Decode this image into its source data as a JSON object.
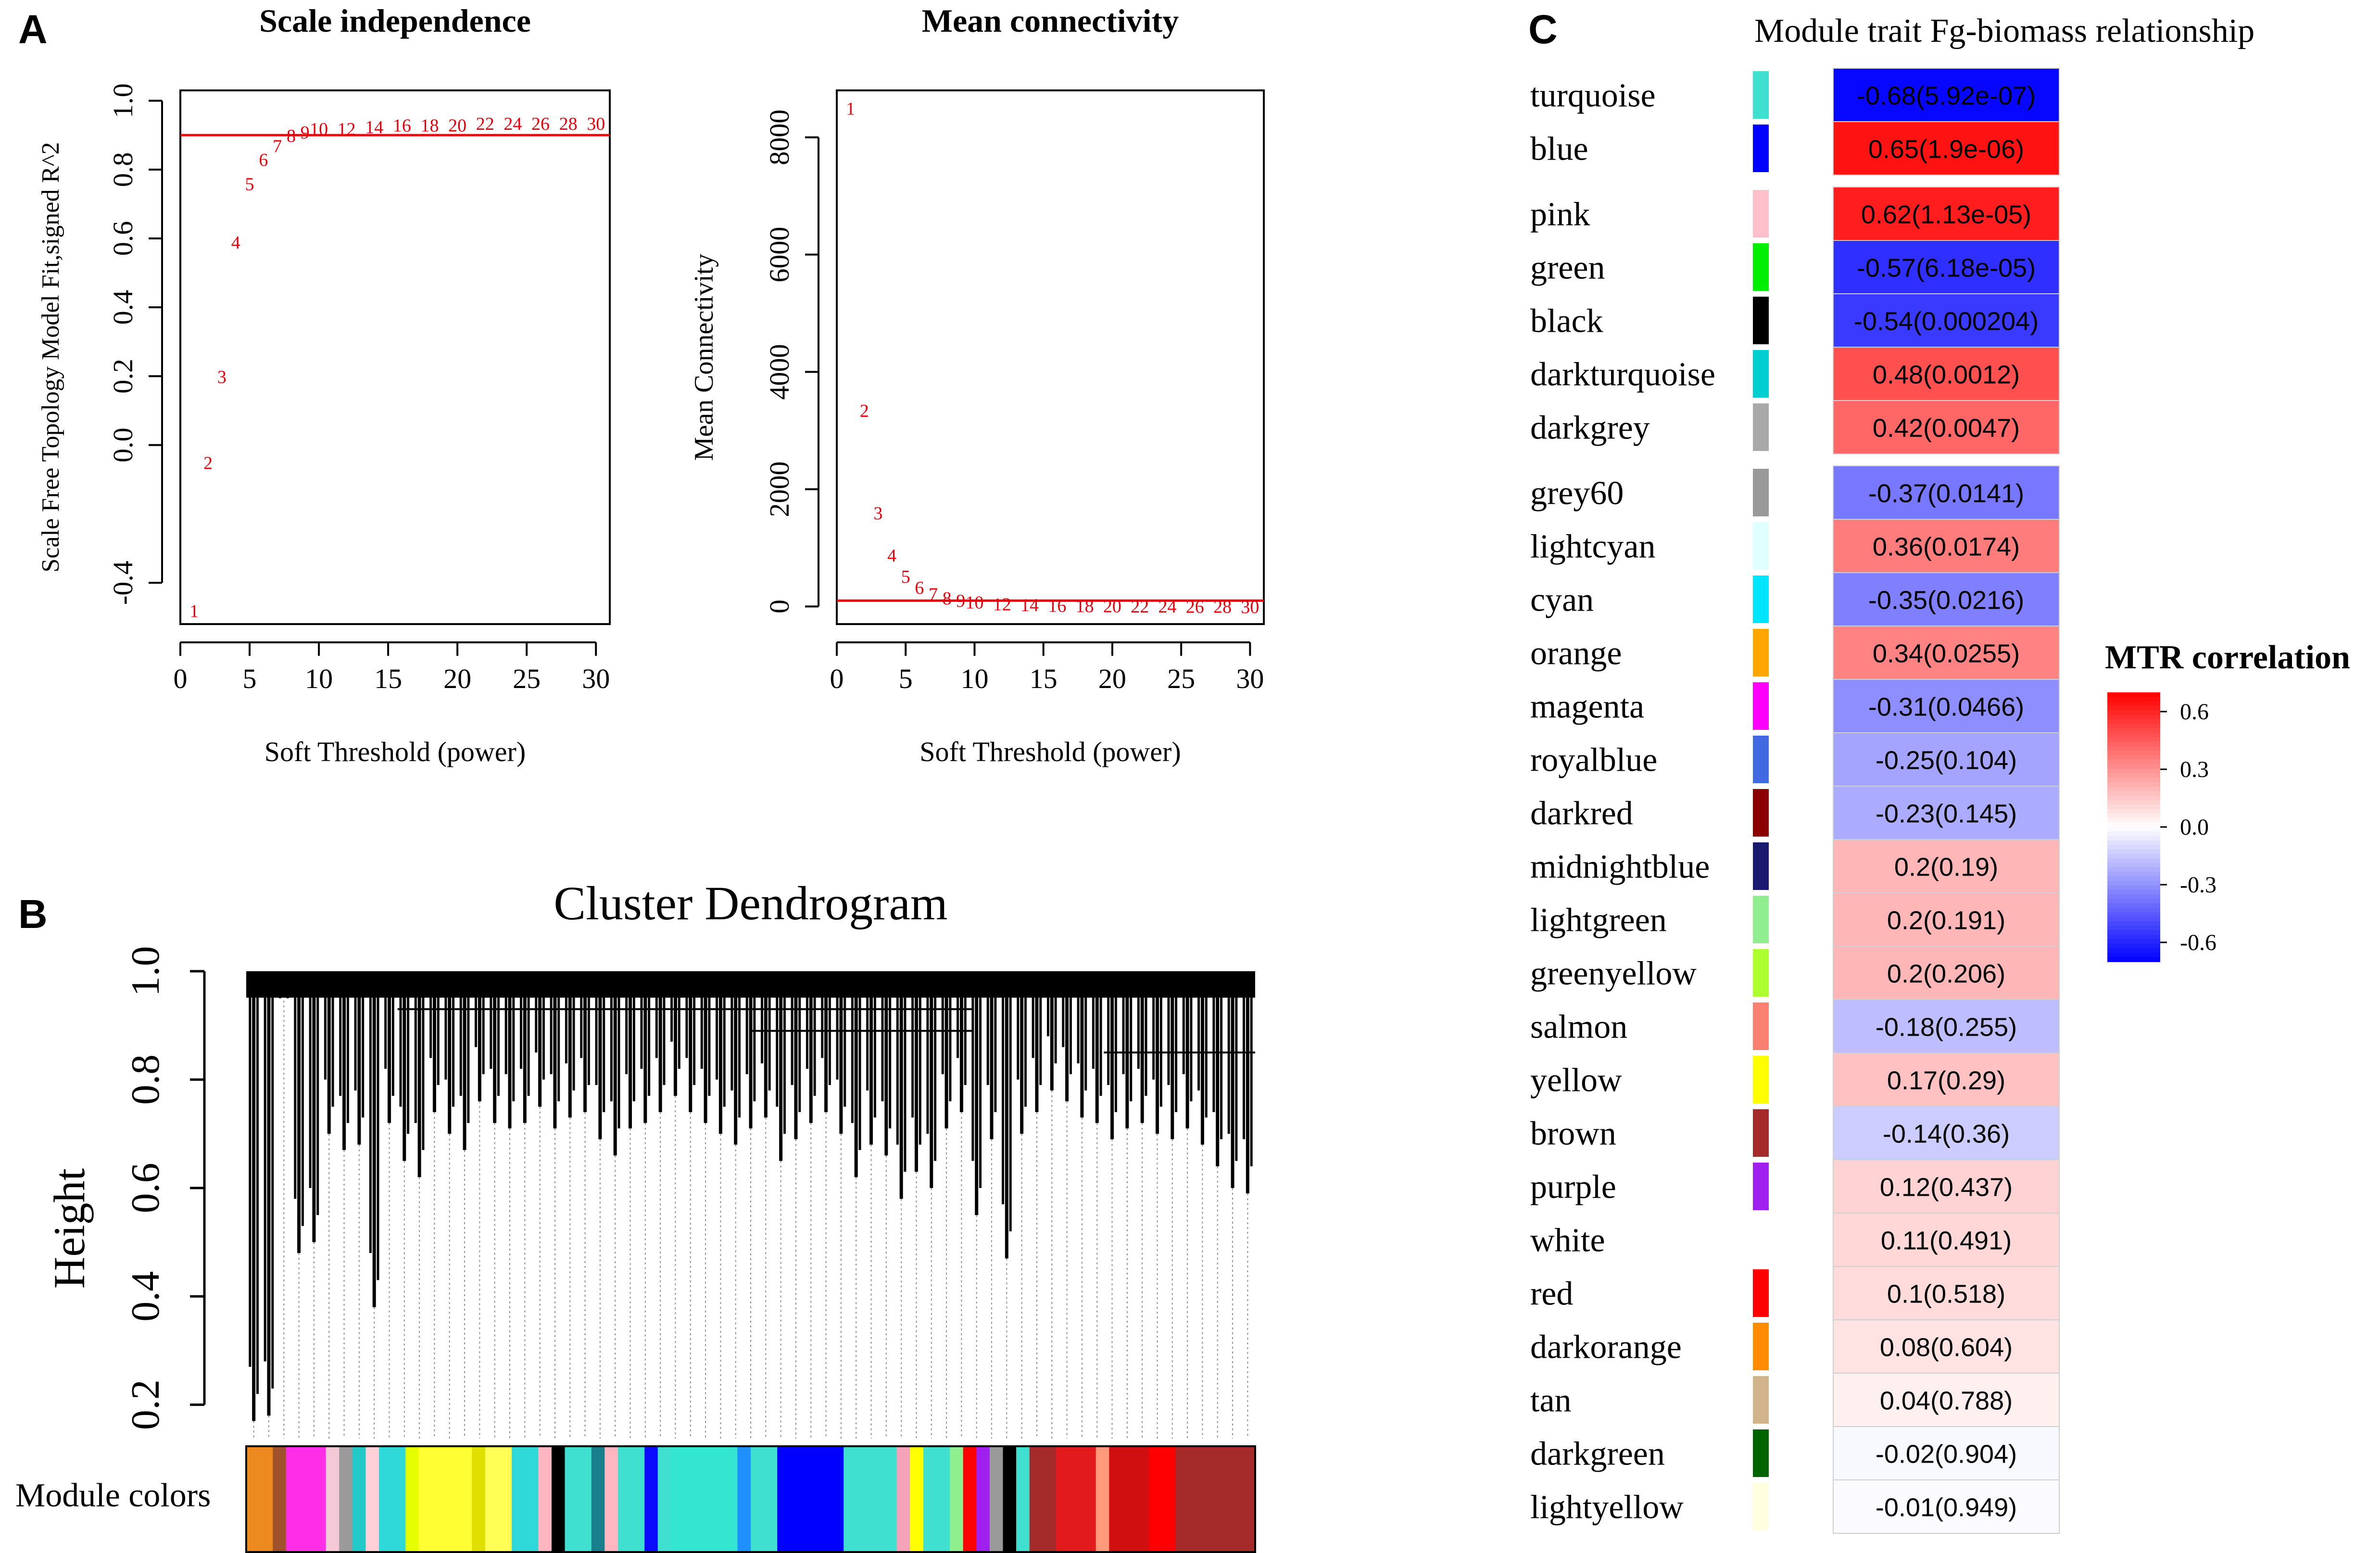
{
  "panels": {
    "a": {
      "letter": "A"
    },
    "b": {
      "letter": "B"
    },
    "c": {
      "letter": "C"
    }
  },
  "chart_data": [
    {
      "id": "scale_independence",
      "type": "scatter",
      "title": "Scale independence",
      "xlabel": "Soft Threshold (power)",
      "ylabel": "Scale Free Topology Model Fit,signed R^2",
      "xlim": [
        0,
        31
      ],
      "ylim": [
        -0.52,
        1.03
      ],
      "xticks": [
        0,
        5,
        10,
        15,
        20,
        25,
        30
      ],
      "yticks": [
        -0.4,
        0.0,
        0.2,
        0.4,
        0.6,
        0.8,
        1.0
      ],
      "ytick_labels": [
        "-0.4",
        "0.0",
        "0.2",
        "0.4",
        "0.6",
        "0.8",
        "1.0"
      ],
      "threshold_line": 0.9,
      "marker_color": "#e8000b",
      "points": [
        {
          "x": 1,
          "y": -0.48,
          "label": "1"
        },
        {
          "x": 2,
          "y": -0.05,
          "label": "2"
        },
        {
          "x": 3,
          "y": 0.2,
          "label": "3"
        },
        {
          "x": 4,
          "y": 0.59,
          "label": "4"
        },
        {
          "x": 5,
          "y": 0.76,
          "label": "5"
        },
        {
          "x": 6,
          "y": 0.83,
          "label": "6"
        },
        {
          "x": 7,
          "y": 0.87,
          "label": "7"
        },
        {
          "x": 8,
          "y": 0.9,
          "label": "8"
        },
        {
          "x": 9,
          "y": 0.91,
          "label": "9"
        },
        {
          "x": 10,
          "y": 0.92,
          "label": "10"
        },
        {
          "x": 12,
          "y": 0.92,
          "label": "12"
        },
        {
          "x": 14,
          "y": 0.925,
          "label": "14"
        },
        {
          "x": 16,
          "y": 0.93,
          "label": "16"
        },
        {
          "x": 18,
          "y": 0.93,
          "label": "18"
        },
        {
          "x": 20,
          "y": 0.93,
          "label": "20"
        },
        {
          "x": 22,
          "y": 0.935,
          "label": "22"
        },
        {
          "x": 24,
          "y": 0.935,
          "label": "24"
        },
        {
          "x": 26,
          "y": 0.935,
          "label": "26"
        },
        {
          "x": 28,
          "y": 0.935,
          "label": "28"
        },
        {
          "x": 30,
          "y": 0.935,
          "label": "30"
        }
      ]
    },
    {
      "id": "mean_connectivity",
      "type": "scatter",
      "title": "Mean connectivity",
      "xlabel": "Soft Threshold (power)",
      "ylabel": "Mean Connectivity",
      "xlim": [
        0,
        31
      ],
      "ylim": [
        -300,
        8800
      ],
      "xticks": [
        0,
        5,
        10,
        15,
        20,
        25,
        30
      ],
      "yticks": [
        0,
        2000,
        4000,
        6000,
        8000
      ],
      "threshold_line": 100,
      "marker_color": "#e8000b",
      "points": [
        {
          "x": 1,
          "y": 8500,
          "label": "1"
        },
        {
          "x": 2,
          "y": 3350,
          "label": "2"
        },
        {
          "x": 3,
          "y": 1600,
          "label": "3"
        },
        {
          "x": 4,
          "y": 880,
          "label": "4"
        },
        {
          "x": 5,
          "y": 520,
          "label": "5"
        },
        {
          "x": 6,
          "y": 330,
          "label": "6"
        },
        {
          "x": 7,
          "y": 220,
          "label": "7"
        },
        {
          "x": 8,
          "y": 150,
          "label": "8"
        },
        {
          "x": 9,
          "y": 110,
          "label": "9"
        },
        {
          "x": 10,
          "y": 80,
          "label": "10"
        },
        {
          "x": 12,
          "y": 50,
          "label": "12"
        },
        {
          "x": 14,
          "y": 35,
          "label": "14"
        },
        {
          "x": 16,
          "y": 25,
          "label": "16"
        },
        {
          "x": 18,
          "y": 20,
          "label": "18"
        },
        {
          "x": 20,
          "y": 15,
          "label": "20"
        },
        {
          "x": 22,
          "y": 12,
          "label": "22"
        },
        {
          "x": 24,
          "y": 10,
          "label": "24"
        },
        {
          "x": 26,
          "y": 8,
          "label": "26"
        },
        {
          "x": 28,
          "y": 6,
          "label": "28"
        },
        {
          "x": 30,
          "y": 5,
          "label": "30"
        }
      ]
    },
    {
      "id": "cluster_dendrogram",
      "type": "dendrogram",
      "title": "Cluster Dendrogram",
      "ylabel": "Height",
      "ylim": [
        0.15,
        1.0
      ],
      "yticks": [
        0.2,
        0.4,
        0.6,
        0.8,
        1.0
      ],
      "ytick_labels": [
        "0.2",
        "0.4",
        "0.6",
        "0.8",
        "1.0"
      ],
      "color_bar_label": "Module colors",
      "module_color_strip": [
        {
          "color": "#ed8a1f",
          "w": 2
        },
        {
          "color": "#a0522d",
          "w": 1
        },
        {
          "color": "#ff2ee6",
          "w": 3
        },
        {
          "color": "#f5c8d6",
          "w": 1
        },
        {
          "color": "#9a9a9a",
          "w": 1
        },
        {
          "color": "#23c8c8",
          "w": 1
        },
        {
          "color": "#ffd0d8",
          "w": 1
        },
        {
          "color": "#2fd9d9",
          "w": 2
        },
        {
          "color": "#e6ff00",
          "w": 1
        },
        {
          "color": "#ffff33",
          "w": 4
        },
        {
          "color": "#e0e000",
          "w": 1
        },
        {
          "color": "#ffff55",
          "w": 2
        },
        {
          "color": "#2fd9d9",
          "w": 2
        },
        {
          "color": "#ffb6c1",
          "w": 1
        },
        {
          "color": "#000000",
          "w": 1
        },
        {
          "color": "#40e0d0",
          "w": 2
        },
        {
          "color": "#1a7f8c",
          "w": 1
        },
        {
          "color": "#ffb6c1",
          "w": 1
        },
        {
          "color": "#40e0d0",
          "w": 2
        },
        {
          "color": "#0b0bff",
          "w": 1
        },
        {
          "color": "#40e0d0",
          "w": 1
        },
        {
          "color": "#32e6d2",
          "w": 5
        },
        {
          "color": "#1e90ff",
          "w": 1
        },
        {
          "color": "#40e0d0",
          "w": 2
        },
        {
          "color": "#0000ff",
          "w": 5
        },
        {
          "color": "#40e0d0",
          "w": 4
        },
        {
          "color": "#f5a3b8",
          "w": 1
        },
        {
          "color": "#ffff00",
          "w": 1
        },
        {
          "color": "#40e0d0",
          "w": 2
        },
        {
          "color": "#8fef8f",
          "w": 1
        },
        {
          "color": "#ff0000",
          "w": 1
        },
        {
          "color": "#a020f0",
          "w": 1
        },
        {
          "color": "#9a9a9a",
          "w": 1
        },
        {
          "color": "#000000",
          "w": 1
        },
        {
          "color": "#40e0d0",
          "w": 1
        },
        {
          "color": "#a52a2a",
          "w": 2
        },
        {
          "color": "#e31a1c",
          "w": 3
        },
        {
          "color": "#ff9a7a",
          "w": 1
        },
        {
          "color": "#d01010",
          "w": 3
        },
        {
          "color": "#ff0000",
          "w": 2
        },
        {
          "color": "#a52a2a",
          "w": 6
        }
      ],
      "heights": [
        0.17,
        0.18,
        0.99,
        0.48,
        0.5,
        0.7,
        0.67,
        0.68,
        0.38,
        0.72,
        0.65,
        0.62,
        0.74,
        0.7,
        0.67,
        0.76,
        0.72,
        0.71,
        0.72,
        0.75,
        0.71,
        0.73,
        0.74,
        0.69,
        0.66,
        0.71,
        0.72,
        0.74,
        0.77,
        0.74,
        0.72,
        0.7,
        0.68,
        0.71,
        0.73,
        0.65,
        0.69,
        0.72,
        0.74,
        0.7,
        0.62,
        0.68,
        0.66,
        0.58,
        0.63,
        0.6,
        0.71,
        0.74,
        0.55,
        0.69,
        0.47,
        0.7,
        0.74,
        0.78,
        0.76,
        0.73,
        0.72,
        0.69,
        0.71,
        0.72,
        0.7,
        0.69,
        0.71,
        0.68,
        0.64,
        0.6,
        0.59
      ],
      "top_level_links": [
        {
          "from": 0.0,
          "to": 0.3,
          "height": 0.99
        },
        {
          "from": 0.15,
          "to": 0.72,
          "height": 0.93
        },
        {
          "from": 0.5,
          "to": 0.72,
          "height": 0.89
        },
        {
          "from": 0.72,
          "to": 1.0,
          "height": 0.99
        },
        {
          "from": 0.85,
          "to": 1.0,
          "height": 0.85
        }
      ]
    },
    {
      "id": "module_trait_relationship",
      "type": "heatmap",
      "title": "Module trait Fg-biomass relationship",
      "legend_title": "MTR correlation",
      "legend_ticks": [
        {
          "value": 0.6,
          "label": "0.6"
        },
        {
          "value": 0.3,
          "label": "0.3"
        },
        {
          "value": 0.0,
          "label": "0.0"
        },
        {
          "value": -0.3,
          "label": "-0.3"
        },
        {
          "value": -0.6,
          "label": "-0.6"
        }
      ],
      "value_range": [
        -0.7,
        0.7
      ],
      "colors": {
        "low": "#0000ff",
        "mid": "#ffffff",
        "high": "#ff0000"
      },
      "groups": [
        {
          "rows": [
            {
              "module": "turquoise",
              "module_color": "#40e0d0",
              "corr": -0.68,
              "label": "-0.68(5.92e-07)"
            },
            {
              "module": "blue",
              "module_color": "#0000ff",
              "corr": 0.65,
              "label": "0.65(1.9e-06)"
            }
          ]
        },
        {
          "rows": [
            {
              "module": "pink",
              "module_color": "#ffc0cb",
              "corr": 0.62,
              "label": "0.62(1.13e-05)"
            },
            {
              "module": "green",
              "module_color": "#00ee00",
              "corr": -0.57,
              "label": "-0.57(6.18e-05)"
            },
            {
              "module": "black",
              "module_color": "#000000",
              "corr": -0.54,
              "label": "-0.54(0.000204)"
            },
            {
              "module": "darkturquoise",
              "module_color": "#00ced1",
              "corr": 0.48,
              "label": "0.48(0.0012)"
            },
            {
              "module": "darkgrey",
              "module_color": "#a9a9a9",
              "corr": 0.42,
              "label": "0.42(0.0047)"
            }
          ]
        },
        {
          "rows": [
            {
              "module": "grey60",
              "module_color": "#999999",
              "corr": -0.37,
              "label": "-0.37(0.0141)"
            },
            {
              "module": "lightcyan",
              "module_color": "#e0ffff",
              "corr": 0.36,
              "label": "0.36(0.0174)"
            },
            {
              "module": "cyan",
              "module_color": "#00e5ff",
              "corr": -0.35,
              "label": "-0.35(0.0216)"
            },
            {
              "module": "orange",
              "module_color": "#ffa500",
              "corr": 0.34,
              "label": "0.34(0.0255)"
            },
            {
              "module": "magenta",
              "module_color": "#ff00ff",
              "corr": -0.31,
              "label": "-0.31(0.0466)"
            },
            {
              "module": "royalblue",
              "module_color": "#4169e1",
              "corr": -0.25,
              "label": "-0.25(0.104)"
            },
            {
              "module": "darkred",
              "module_color": "#8b0000",
              "corr": -0.23,
              "label": "-0.23(0.145)"
            },
            {
              "module": "midnightblue",
              "module_color": "#191970",
              "corr": 0.2,
              "label": "0.2(0.19)"
            },
            {
              "module": "lightgreen",
              "module_color": "#90ee90",
              "corr": 0.2,
              "label": "0.2(0.191)"
            },
            {
              "module": "greenyellow",
              "module_color": "#adff2f",
              "corr": 0.2,
              "label": "0.2(0.206)"
            },
            {
              "module": "salmon",
              "module_color": "#fa8072",
              "corr": -0.18,
              "label": "-0.18(0.255)"
            },
            {
              "module": "yellow",
              "module_color": "#ffff00",
              "corr": 0.17,
              "label": "0.17(0.29)"
            },
            {
              "module": "brown",
              "module_color": "#a52a2a",
              "corr": -0.14,
              "label": "-0.14(0.36)"
            },
            {
              "module": "purple",
              "module_color": "#a020f0",
              "corr": 0.12,
              "label": "0.12(0.437)"
            },
            {
              "module": "white",
              "module_color": "#ffffff",
              "corr": 0.11,
              "label": "0.11(0.491)"
            },
            {
              "module": "red",
              "module_color": "#ff0000",
              "corr": 0.1,
              "label": "0.1(0.518)"
            },
            {
              "module": "darkorange",
              "module_color": "#ff8c00",
              "corr": 0.08,
              "label": "0.08(0.604)"
            },
            {
              "module": "tan",
              "module_color": "#d2b48c",
              "corr": 0.04,
              "label": "0.04(0.788)"
            },
            {
              "module": "darkgreen",
              "module_color": "#006400",
              "corr": -0.02,
              "label": "-0.02(0.904)"
            },
            {
              "module": "lightyellow",
              "module_color": "#ffffe0",
              "corr": -0.01,
              "label": "-0.01(0.949)"
            }
          ]
        }
      ]
    }
  ]
}
